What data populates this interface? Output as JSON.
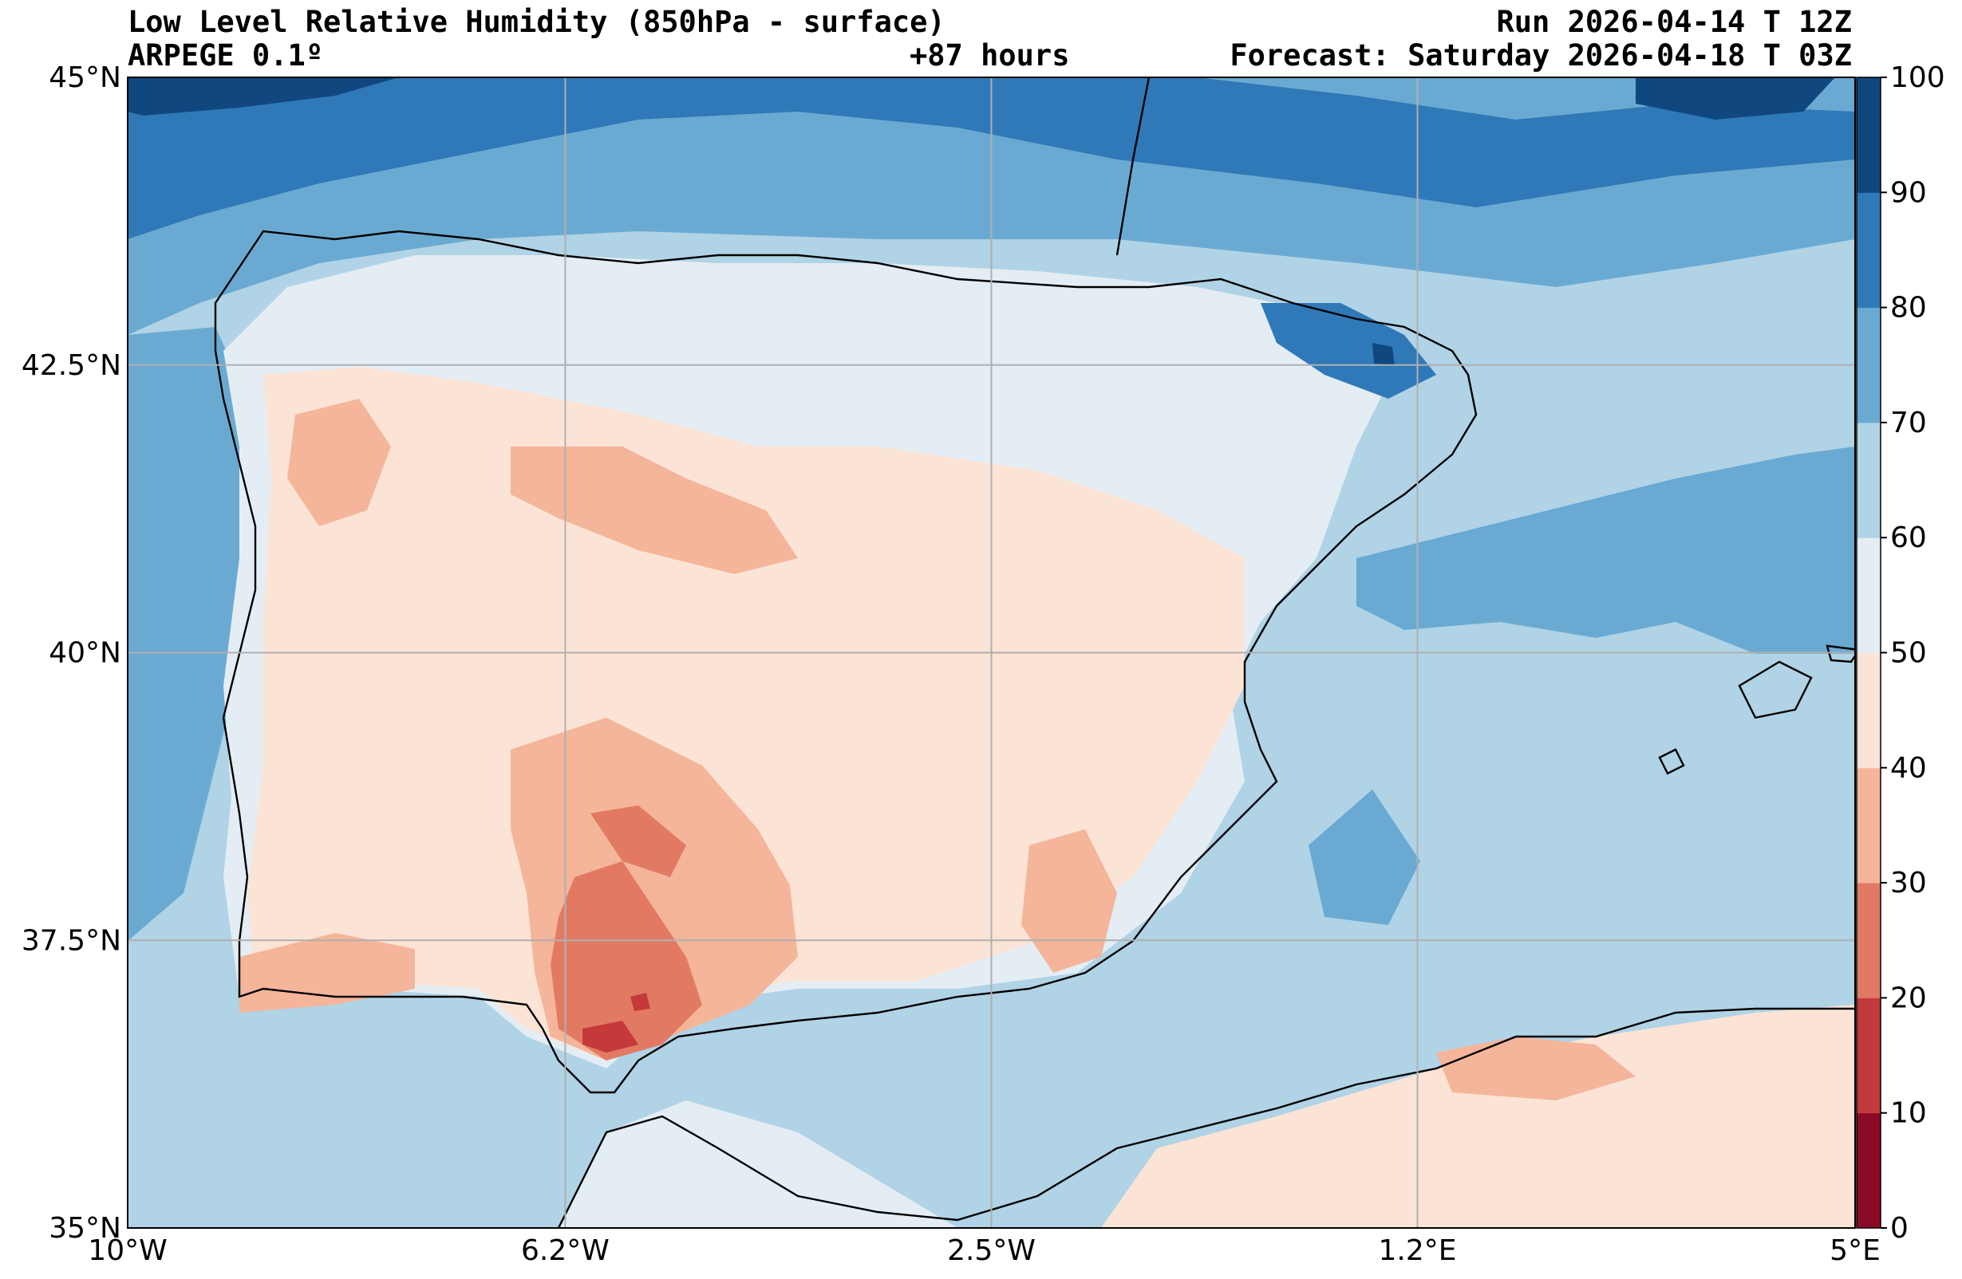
{
  "header": {
    "title": "Low Level Relative Humidity (850hPa - surface)",
    "model": "ARPEGE 0.1º",
    "lead_time": "+87 hours",
    "run": "Run 2026-04-14 T 12Z",
    "forecast": "Forecast: Saturday 2026-04-18 T 03Z"
  },
  "map": {
    "extent_lon": [
      -10,
      5
    ],
    "extent_lat": [
      35,
      45
    ],
    "lon_ticks": [
      {
        "value": -10,
        "label": "10°W"
      },
      {
        "value": -6.2,
        "label": "6.2°W"
      },
      {
        "value": -2.5,
        "label": "2.5°W"
      },
      {
        "value": 1.2,
        "label": "1.2°E"
      },
      {
        "value": 5,
        "label": "5°E"
      }
    ],
    "lat_ticks": [
      {
        "value": 45,
        "label": "45°N"
      },
      {
        "value": 42.5,
        "label": "42.5°N"
      },
      {
        "value": 40,
        "label": "40°N"
      },
      {
        "value": 37.5,
        "label": "37.5°N"
      },
      {
        "value": 35,
        "label": "35°N"
      }
    ]
  },
  "colorbar": {
    "levels": [
      0,
      10,
      20,
      30,
      40,
      50,
      60,
      70,
      80,
      90,
      100
    ],
    "labels": [
      "0",
      "10",
      "20",
      "30",
      "40",
      "50",
      "60",
      "70",
      "80",
      "90",
      "100"
    ],
    "colors": [
      "#8b0a26",
      "#c43a3a",
      "#e27a63",
      "#f5b59a",
      "#fbe4d6",
      "#e4edf4",
      "#b0d3e6",
      "#6aaad2",
      "#3079b8",
      "#11477f"
    ]
  }
}
